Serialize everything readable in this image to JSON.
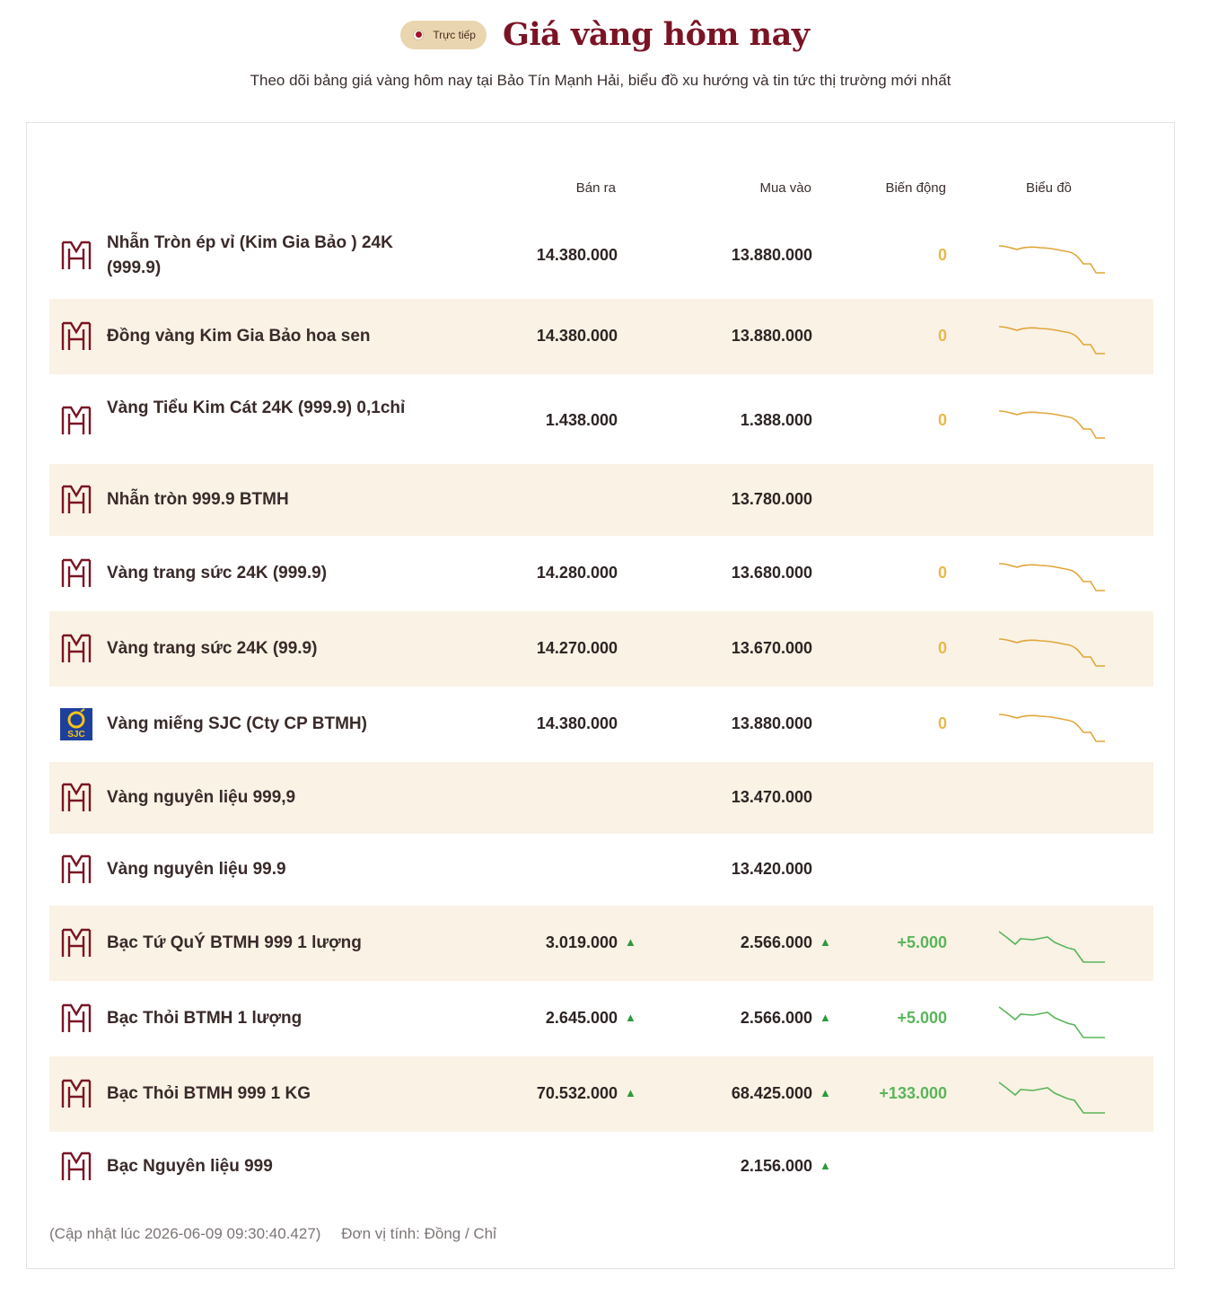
{
  "header": {
    "live_label": "Trực tiếp",
    "title": "Giá vàng hôm nay",
    "subtitle": "Theo dõi bảng giá vàng hôm nay tại Bảo Tín Mạnh Hải, biểu đồ xu hướng và tin tức thị trường mới nhất"
  },
  "table": {
    "columns": {
      "sell": "Bán ra",
      "buy": "Mua vào",
      "change": "Biến động",
      "chart": "Biểu đồ"
    },
    "rows": [
      {
        "name": "Nhẫn Tròn ép vỉ (Kim Gia Bảo ) 24K (999.9)",
        "sell": "14.380.000",
        "buy": "13.880.000",
        "change": "0",
        "trend": "zero",
        "logo": "btmh"
      },
      {
        "name": "Đồng vàng Kim Gia Bảo hoa sen",
        "sell": "14.380.000",
        "buy": "13.880.000",
        "change": "0",
        "trend": "zero",
        "logo": "btmh"
      },
      {
        "name": "Vàng Tiểu Kim Cát 24K (999.9) 0,1chỉ",
        "sell": "1.438.000",
        "buy": "1.388.000",
        "change": "0",
        "trend": "zero",
        "logo": "btmh"
      },
      {
        "name": "Nhẫn tròn 999.9 BTMH",
        "sell": "",
        "buy": "13.780.000",
        "change": "",
        "trend": "none",
        "logo": "btmh"
      },
      {
        "name": "Vàng trang sức 24K (999.9)",
        "sell": "14.280.000",
        "buy": "13.680.000",
        "change": "0",
        "trend": "zero",
        "logo": "btmh"
      },
      {
        "name": "Vàng trang sức 24K (99.9)",
        "sell": "14.270.000",
        "buy": "13.670.000",
        "change": "0",
        "trend": "zero",
        "logo": "btmh"
      },
      {
        "name": "Vàng miếng SJC (Cty CP BTMH)",
        "sell": "14.380.000",
        "buy": "13.880.000",
        "change": "0",
        "trend": "zero",
        "logo": "sjc"
      },
      {
        "name": "Vàng nguyên liệu 999,9",
        "sell": "",
        "buy": "13.470.000",
        "change": "",
        "trend": "none",
        "logo": "btmh"
      },
      {
        "name": "Vàng nguyên liệu 99.9",
        "sell": "",
        "buy": "13.420.000",
        "change": "",
        "trend": "none",
        "logo": "btmh"
      },
      {
        "name": "Bạc Tứ QuÝ BTMH 999 1 lượng",
        "sell": "3.019.000",
        "buy": "2.566.000",
        "change": "+5.000",
        "trend": "up",
        "logo": "btmh"
      },
      {
        "name": "Bạc Thỏi BTMH 1 lượng",
        "sell": "2.645.000",
        "buy": "2.566.000",
        "change": "+5.000",
        "trend": "up",
        "logo": "btmh"
      },
      {
        "name": "Bạc Thỏi BTMH 999 1 KG",
        "sell": "70.532.000",
        "buy": "68.425.000",
        "change": "+133.000",
        "trend": "up",
        "logo": "btmh"
      },
      {
        "name": "Bạc Nguyên liệu 999",
        "sell": "",
        "buy": "2.156.000",
        "change": "",
        "trend": "up-buy-only",
        "logo": "btmh"
      }
    ]
  },
  "footer": {
    "updated": "(Cập nhật lúc 2026-06-09 09:30:40.427)",
    "unit": "Đơn vị tính: Đồng / Chỉ"
  },
  "colors": {
    "accent": "#7a1424",
    "gold_line": "#e0a63a",
    "green_line": "#5ab55a",
    "row_alt": "#faf2e5"
  }
}
